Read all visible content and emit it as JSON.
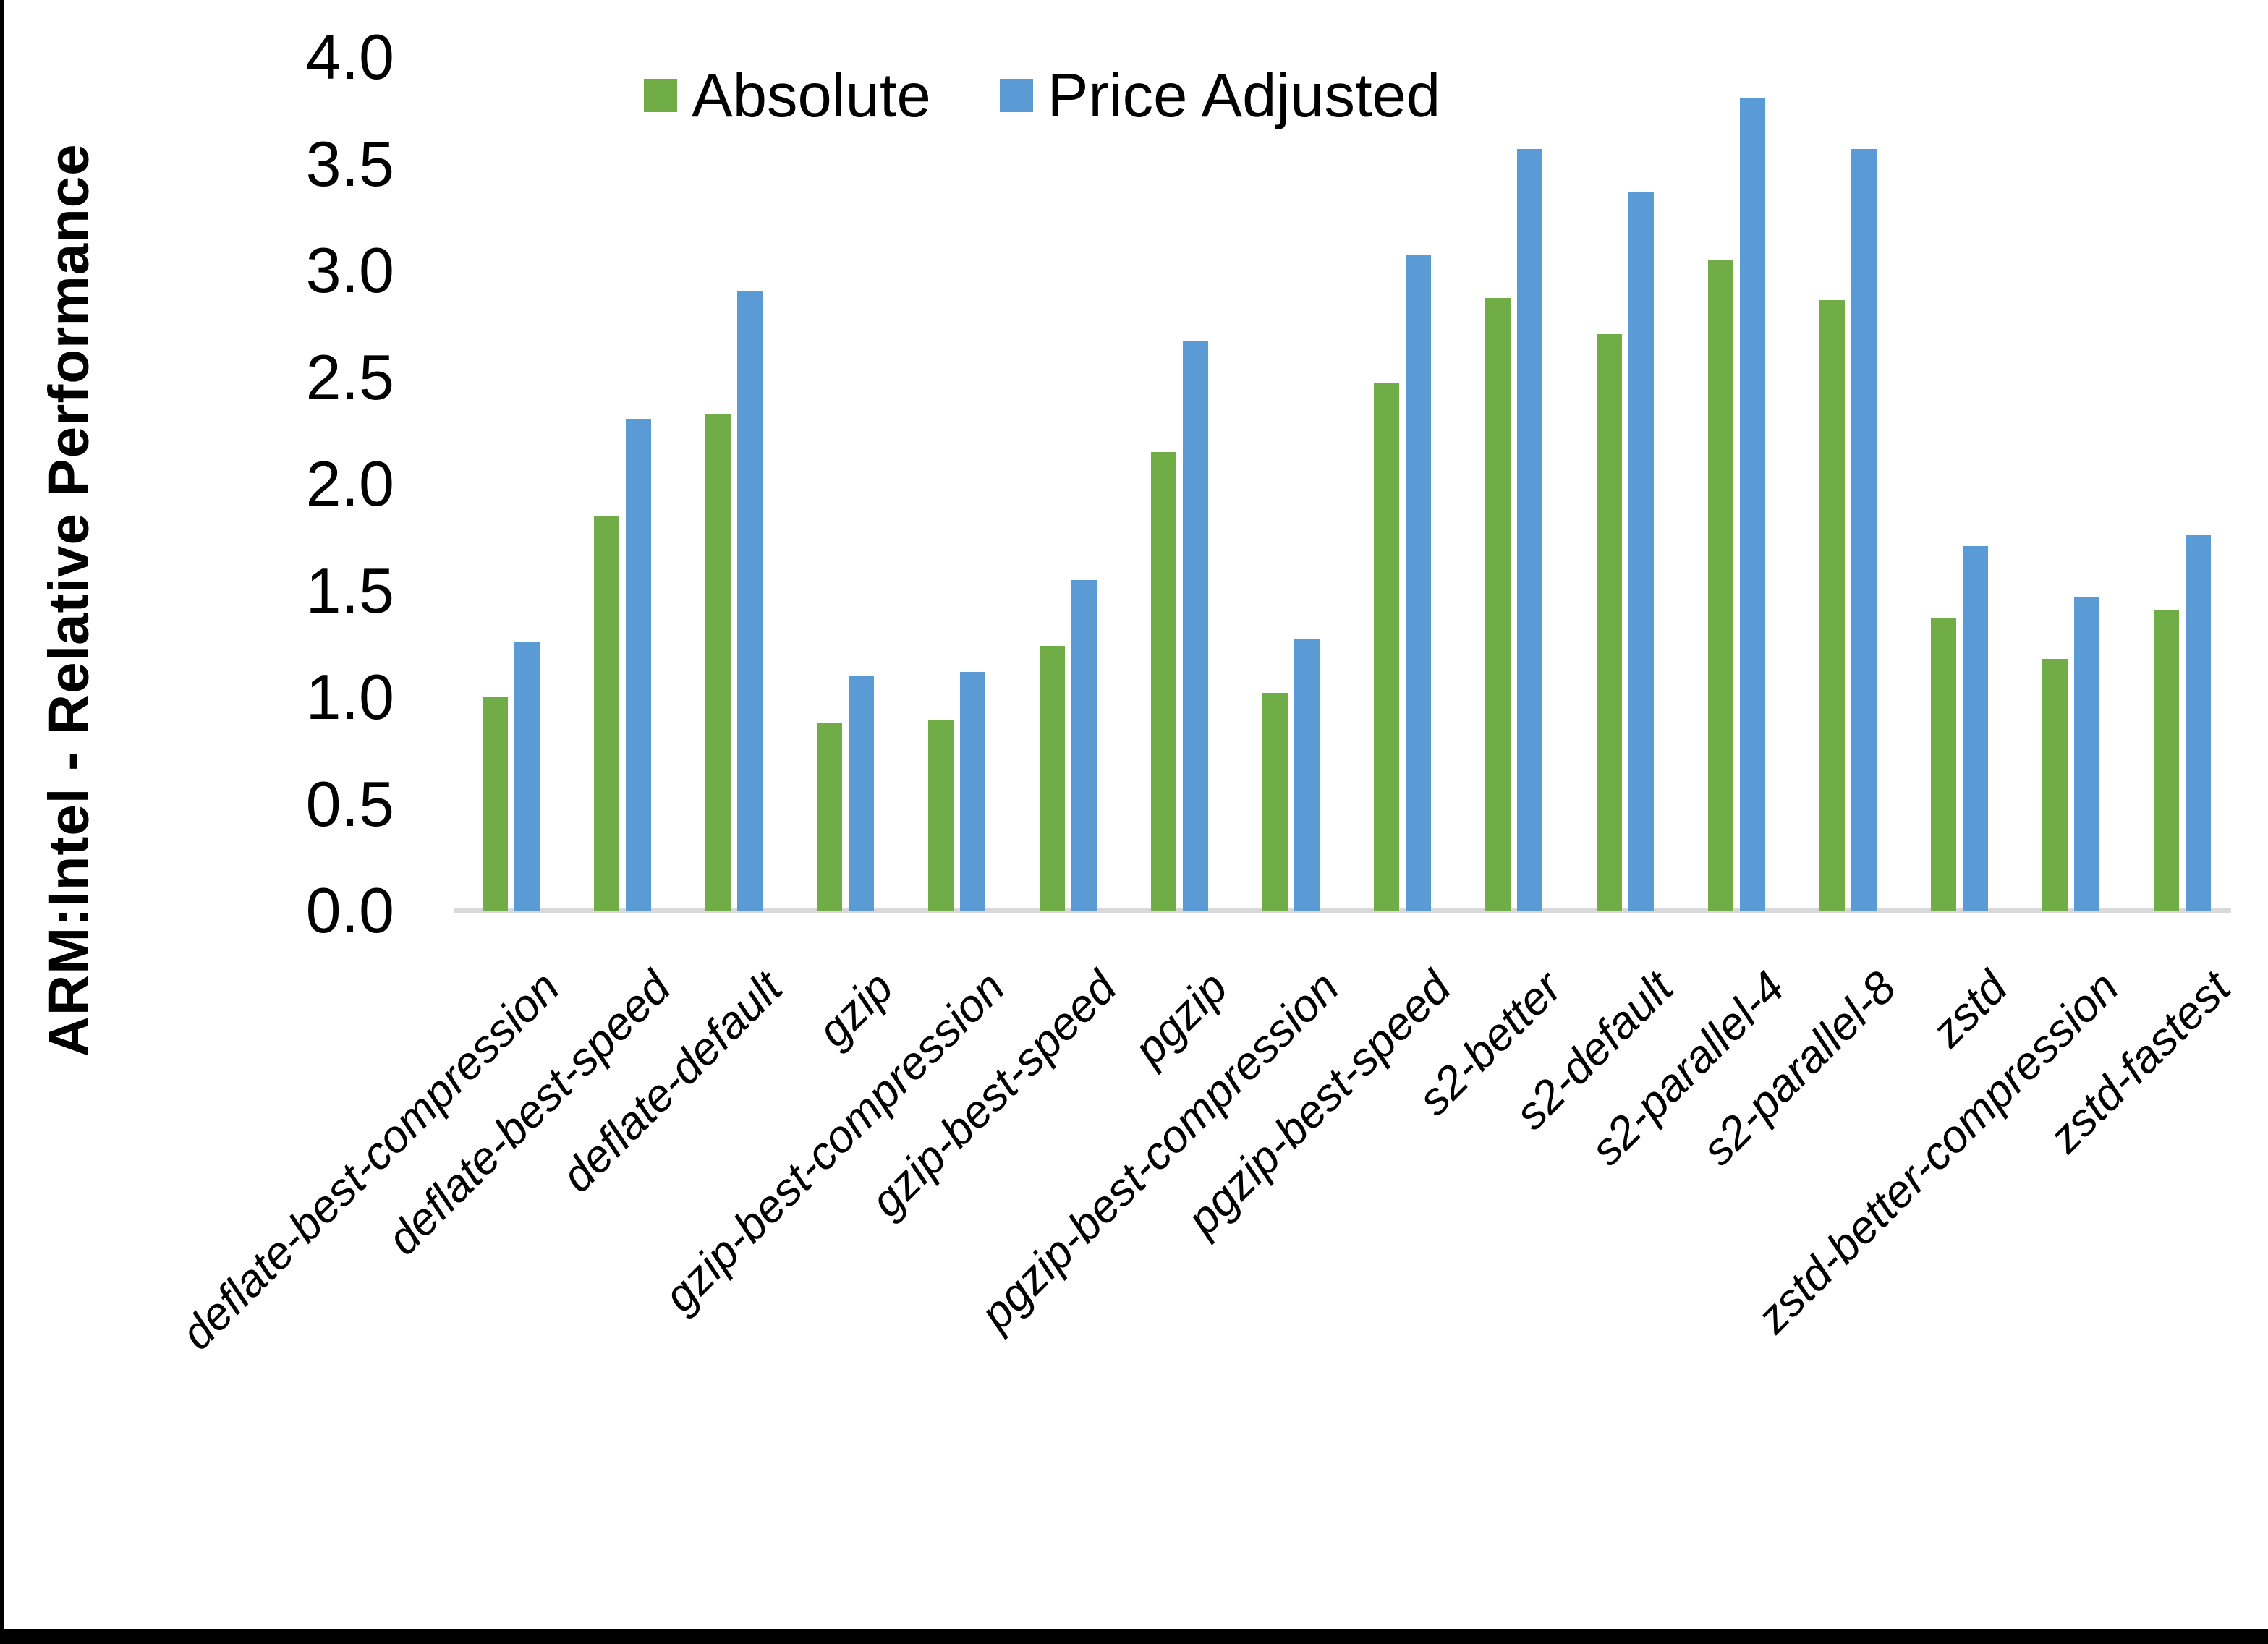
{
  "page": {
    "background": "#FFFFFF",
    "left_border_color": "#000000",
    "bottom_border_color": "#000000"
  },
  "legend": {
    "items": [
      {
        "label": "Absolute",
        "color": "#70AD47"
      },
      {
        "label": "Price Adjusted",
        "color": "#5B9BD5"
      }
    ]
  },
  "y_axis": {
    "title": "ARM:Intel - Relative Performance",
    "tick_labels": [
      "0.0",
      "0.5",
      "1.0",
      "1.5",
      "2.0",
      "2.5",
      "3.0",
      "3.5",
      "4.0"
    ]
  },
  "chart_data": {
    "type": "bar",
    "title": "",
    "xlabel": "",
    "ylabel": "ARM:Intel - Relative Performance",
    "ylim": [
      0,
      4
    ],
    "y_tick_step": 0.5,
    "grid": false,
    "legend_position": "top-center",
    "axis_line_color": "#D9D9D9",
    "categories": [
      "deflate-best-compression",
      "deflate-best-speed",
      "deflate-default",
      "gzip",
      "gzip-best-compression",
      "gzip-best-speed",
      "pgzip",
      "pgzip-best-compression",
      "pgzip-best-speed",
      "s2-better",
      "s2-default",
      "s2-parallel-4",
      "s2-parallel-8",
      "zstd",
      "zstd-better-compression",
      "zstd-fastest"
    ],
    "series": [
      {
        "name": "Absolute",
        "color": "#70AD47",
        "values": [
          1.0,
          1.85,
          2.33,
          0.88,
          0.89,
          1.24,
          2.15,
          1.02,
          2.47,
          2.87,
          2.7,
          3.05,
          2.86,
          1.37,
          1.18,
          1.41
        ]
      },
      {
        "name": "Price Adjusted",
        "color": "#5B9BD5",
        "values": [
          1.26,
          2.3,
          2.9,
          1.1,
          1.12,
          1.55,
          2.67,
          1.27,
          3.07,
          3.57,
          3.37,
          3.81,
          3.57,
          1.71,
          1.47,
          1.76
        ]
      }
    ]
  }
}
